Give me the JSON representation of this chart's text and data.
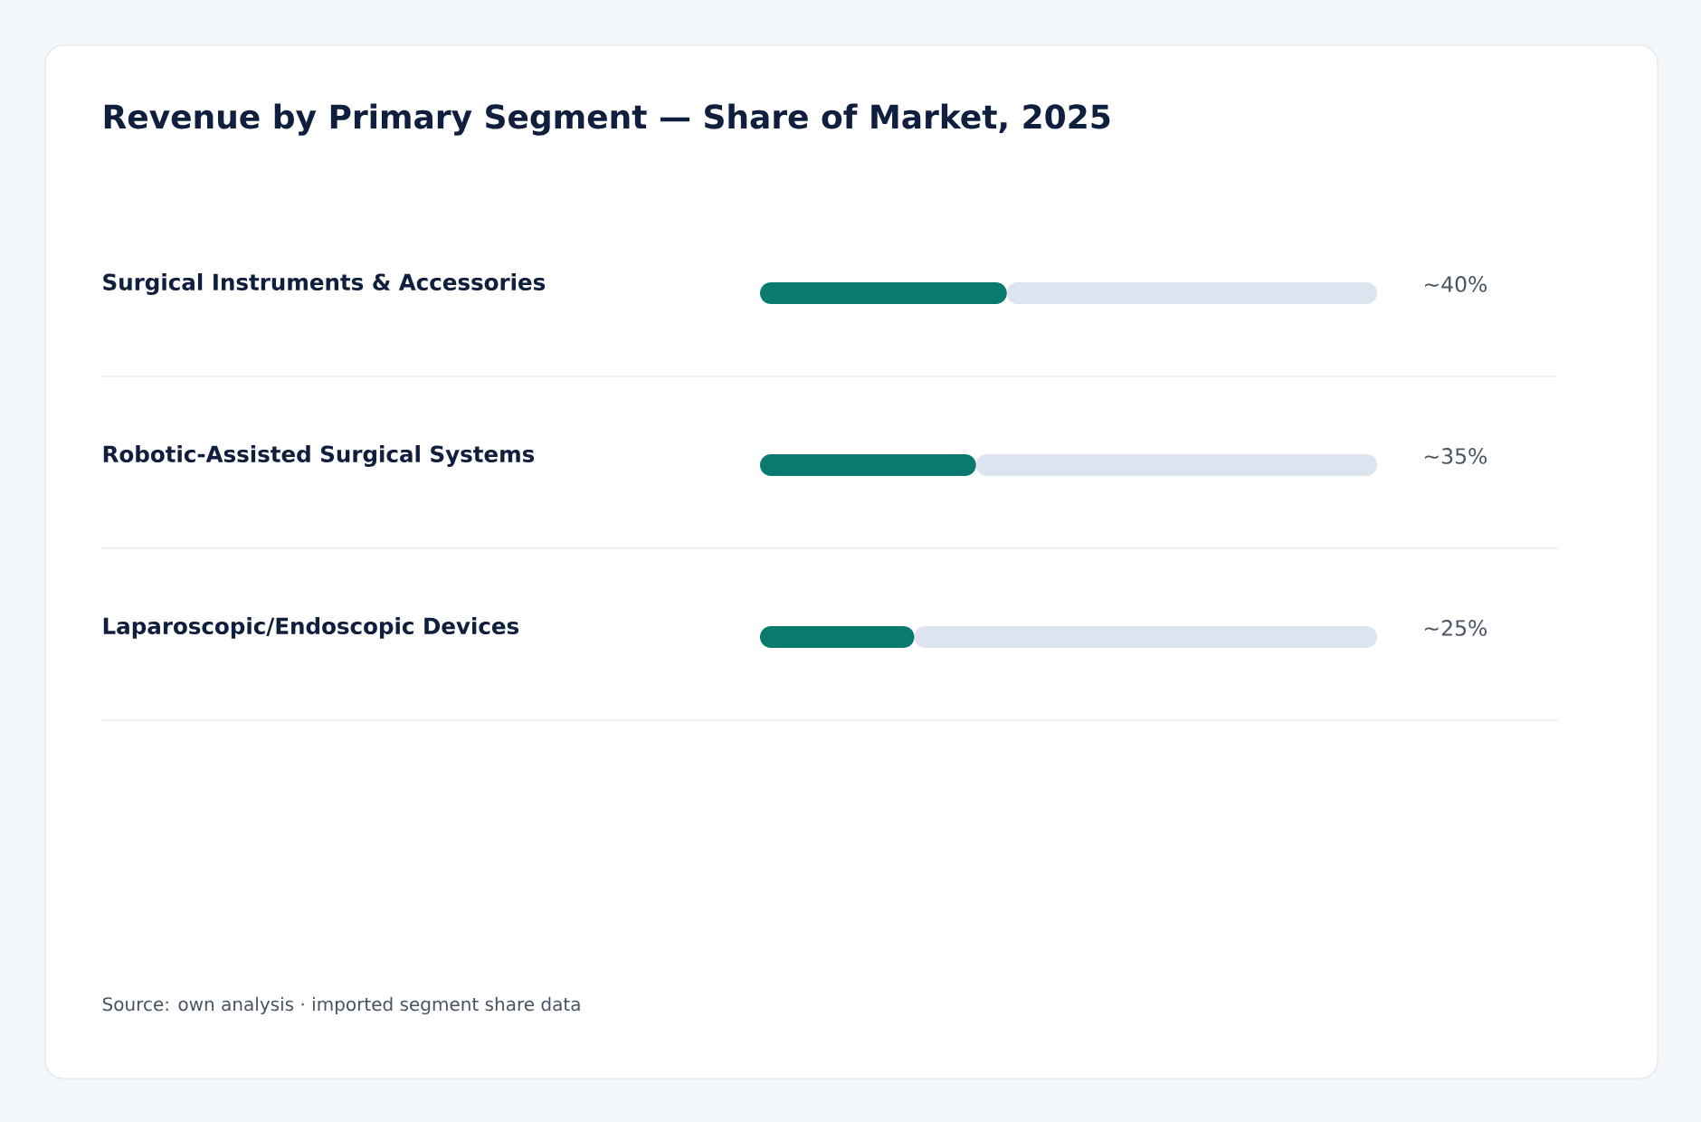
{
  "chart_data": {
    "type": "bar",
    "orientation": "horizontal",
    "stacked": true,
    "title": "Revenue by Primary Segment — Share of Market, 2025",
    "categories": [
      "Surgical Instruments & Accessories",
      "Robotic-Assisted Surgical Systems",
      "Laparoscopic/Endoscopic Devices"
    ],
    "series": [
      {
        "color": "#0b7a6e",
        "values": [
          40,
          35,
          25
        ],
        "value_labels": [
          "~40%",
          "~35%",
          "~25%"
        ]
      },
      {
        "color": "#dce4ef",
        "values": [
          60,
          65,
          75
        ]
      }
    ],
    "xlim": [
      0,
      100
    ],
    "annotations": [
      "Source: own analysis · imported segment share data"
    ]
  }
}
